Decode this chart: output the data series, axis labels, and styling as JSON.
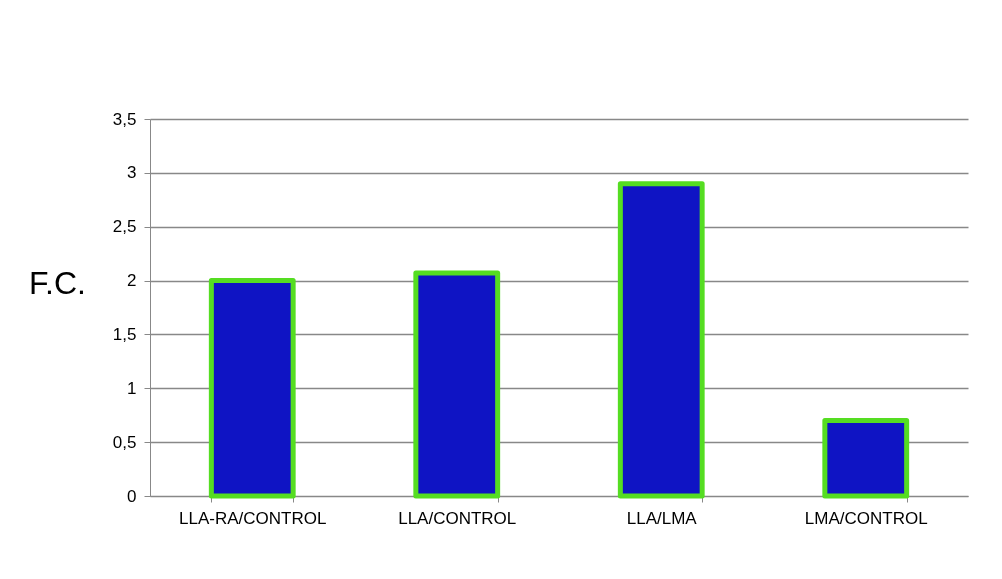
{
  "chart_data": {
    "type": "bar",
    "ylabel": "F.C.",
    "categories": [
      "LLA-RA/CONTROL",
      "LLA/CONTROL",
      "LLA/LMA",
      "LMA/CONTROL"
    ],
    "values": [
      2.0,
      2.07,
      2.9,
      0.7
    ],
    "color": "#0f14c4",
    "ylim": [
      0,
      3.5
    ],
    "yticks": [
      0,
      {
        "value": 0.5,
        "label": "0,5"
      },
      1,
      {
        "value": 1.5,
        "label": "1,5"
      },
      2,
      {
        "value": 2.5,
        "label": "2,5"
      },
      3,
      {
        "value": 3.5,
        "label": "3,5"
      }
    ],
    "grid": "y"
  }
}
